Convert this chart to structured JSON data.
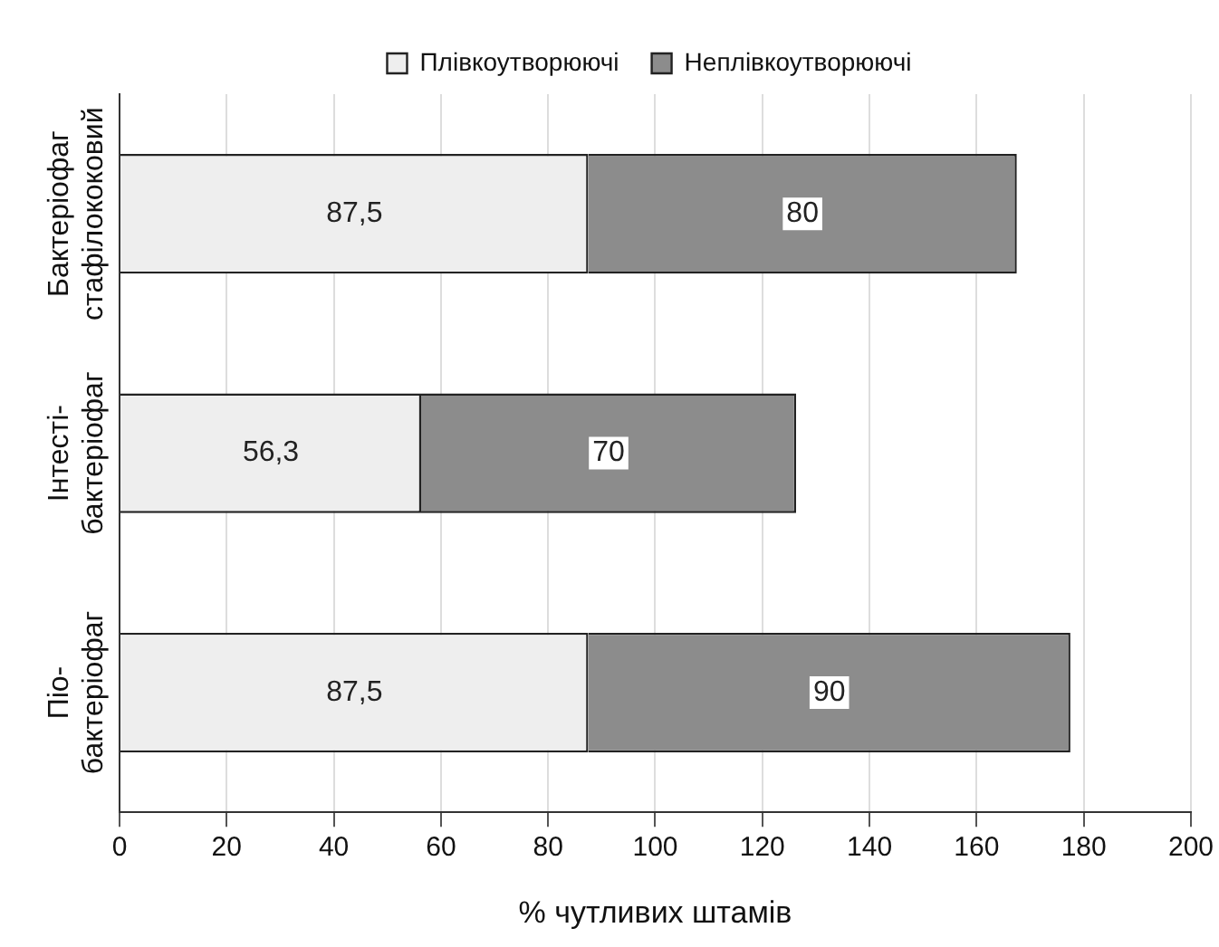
{
  "chart_data": {
    "type": "bar",
    "orientation": "horizontal",
    "stacked": true,
    "xlabel": "% чутливих штамів",
    "categories": [
      "Бактеріофаг стафілококовий",
      "Інтесті-бактеріофаг",
      "Піо-бактеріофаг"
    ],
    "series": [
      {
        "name": "Плівкоутворюючі",
        "color": "#eeeeee",
        "values": [
          87.5,
          56.3,
          87.5
        ],
        "value_labels": [
          "87,5",
          "56,3",
          "87,5"
        ]
      },
      {
        "name": "Неплівкоутворюючі",
        "color": "#8c8c8c",
        "values": [
          80,
          70,
          90
        ],
        "value_labels": [
          "80",
          "70",
          "90"
        ]
      }
    ],
    "xlim": [
      0,
      200
    ],
    "xticks": [
      0,
      20,
      40,
      60,
      80,
      100,
      120,
      140,
      160,
      180,
      200
    ],
    "grid": "x",
    "legend": "top"
  }
}
